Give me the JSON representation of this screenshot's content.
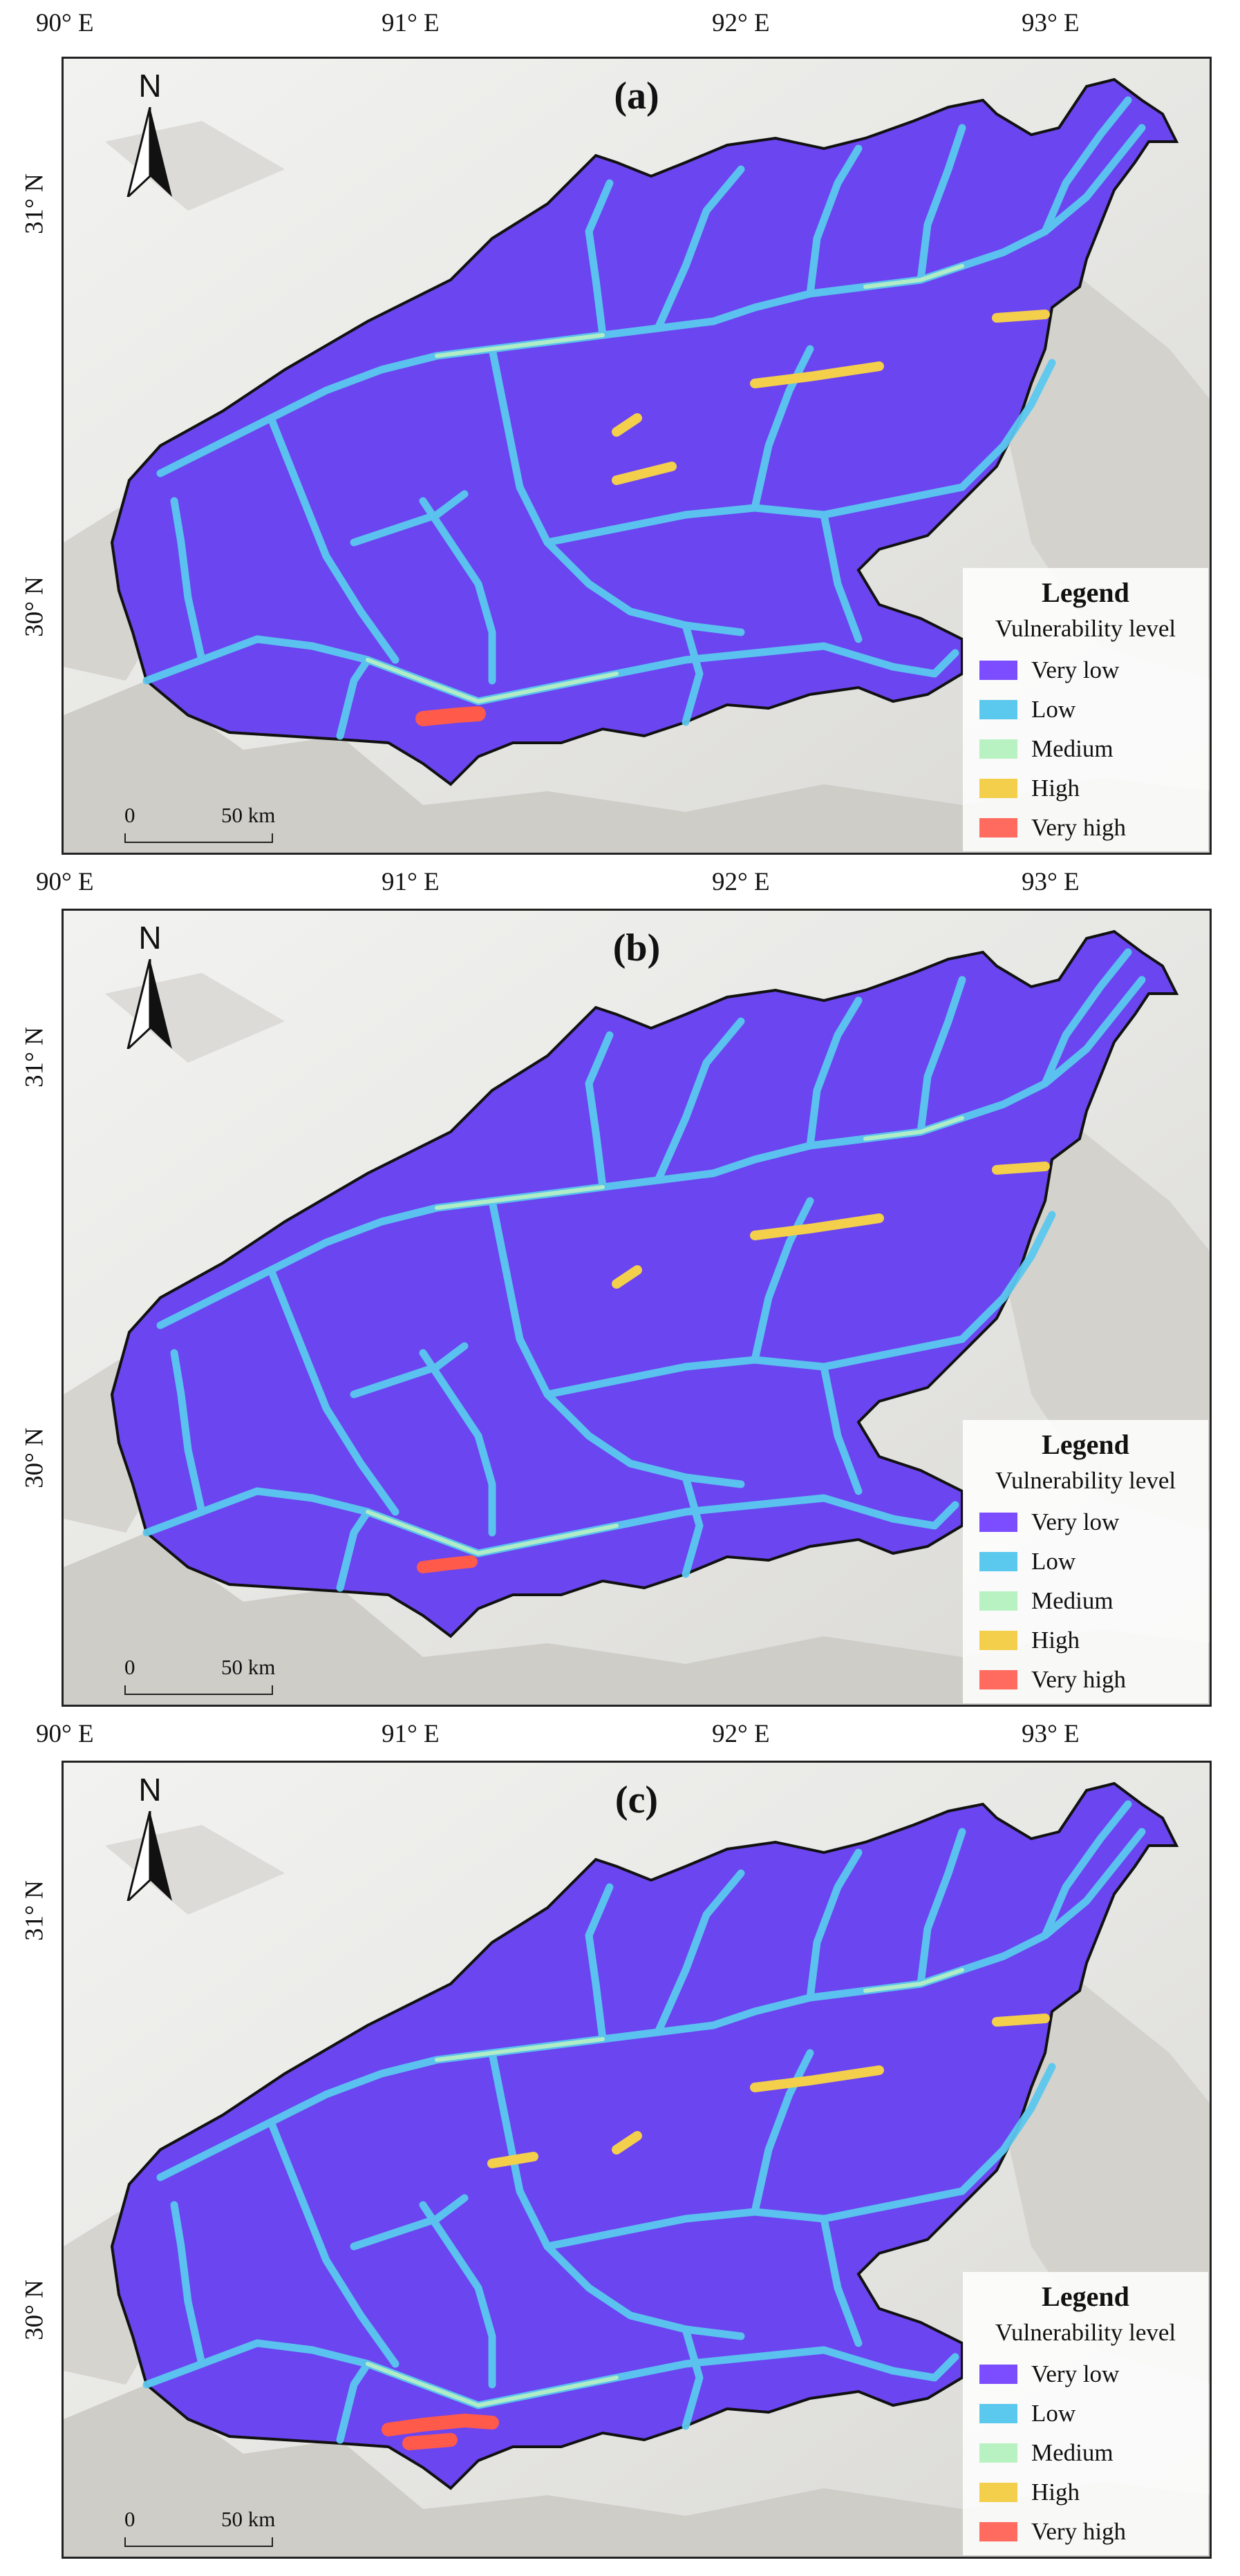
{
  "longitude_labels": [
    "90° E",
    "91° E",
    "92° E",
    "93° E"
  ],
  "latitude_labels": [
    "31° N",
    "30° N"
  ],
  "panels": [
    {
      "label": "(a)"
    },
    {
      "label": "(b)"
    },
    {
      "label": "(c)"
    }
  ],
  "north_arrow": {
    "letter": "N",
    "icon": "north-arrow-icon"
  },
  "scale_bar": {
    "start": "0",
    "end": "50 km"
  },
  "legend": {
    "title": "Legend",
    "subtitle": "Vulnerability level",
    "items": [
      {
        "label": "Very low",
        "color": "#7b4dff"
      },
      {
        "label": "Low",
        "color": "#5bc8ee"
      },
      {
        "label": "Medium",
        "color": "#b9f2c2"
      },
      {
        "label": "High",
        "color": "#f3cf4b"
      },
      {
        "label": "Very high",
        "color": "#ff6b5e"
      }
    ]
  },
  "colors": {
    "basin_fill": "#6a45f0",
    "river_low": "#5bc8ee",
    "river_medium": "#b9f2c2",
    "river_high": "#f3cf4b",
    "river_very_high": "#ff5a4a",
    "terrain": "#e6e6e3",
    "boundary": "#111111"
  }
}
